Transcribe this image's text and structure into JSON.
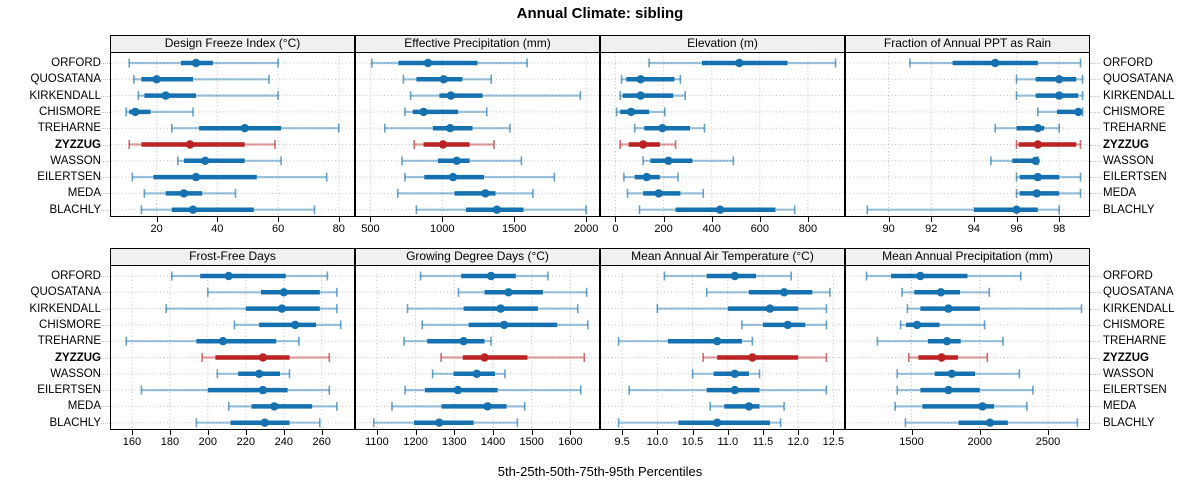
{
  "title": "Annual Climate: sibling",
  "caption": "5th-25th-50th-75th-95th Percentiles",
  "colors": {
    "series": "#1671b0",
    "series_light": "#7db3d8",
    "highlight": "#bb2222",
    "highlight_light": "#d58a86",
    "grid": "#c4c4c4",
    "strip_bg": "#f0f0f0",
    "border": "#000000"
  },
  "chart_data": {
    "type": "scatter",
    "subtype": "percentile-dot-whisker-trellis",
    "percentiles": [
      5,
      25,
      50,
      75,
      95
    ],
    "layout": {
      "rows": 2,
      "cols": 4,
      "grid": "dotted",
      "station_labels": "both-sides"
    },
    "categories": [
      "ORFORD",
      "QUOSATANA",
      "KIRKENDALL",
      "CHISMORE",
      "TREHARNE",
      "ZYZZUG",
      "WASSON",
      "EILERTSEN",
      "MEDA",
      "BLACHLY"
    ],
    "highlight_category": "ZYZZUG",
    "panels": [
      {
        "title": "Design Freeze Index (°C)",
        "xlim": [
          5,
          85
        ],
        "ticks": [
          20,
          40,
          60,
          80
        ],
        "tick_labels": [
          "20",
          "40",
          "60",
          "80"
        ],
        "values": [
          [
            11,
            28,
            33,
            38.5,
            60
          ],
          [
            12.5,
            15,
            20,
            32,
            57
          ],
          [
            14,
            16,
            23,
            33,
            60
          ],
          [
            10,
            11,
            13,
            18,
            32
          ],
          [
            25,
            34,
            49,
            61,
            80
          ],
          [
            11,
            15,
            31,
            49,
            59
          ],
          [
            27,
            29,
            36,
            49,
            61
          ],
          [
            12,
            19,
            33,
            53,
            76
          ],
          [
            16,
            23,
            29,
            35,
            46
          ],
          [
            15,
            25,
            32,
            52,
            72
          ]
        ]
      },
      {
        "title": "Effective Precipitation (mm)",
        "xlim": [
          400,
          2090
        ],
        "ticks": [
          500,
          1000,
          1500,
          2000
        ],
        "tick_labels": [
          "500",
          "1000",
          "1500",
          "2000"
        ],
        "values": [
          [
            510,
            695,
            900,
            1245,
            1590
          ],
          [
            730,
            820,
            1010,
            1140,
            1340
          ],
          [
            780,
            980,
            1060,
            1280,
            1960
          ],
          [
            740,
            795,
            870,
            1110,
            1310
          ],
          [
            600,
            935,
            1055,
            1210,
            1470
          ],
          [
            805,
            870,
            1005,
            1190,
            1360
          ],
          [
            720,
            970,
            1100,
            1190,
            1550
          ],
          [
            740,
            875,
            1075,
            1290,
            1780
          ],
          [
            690,
            1085,
            1300,
            1370,
            1630
          ],
          [
            820,
            1165,
            1380,
            1565,
            2000
          ]
        ]
      },
      {
        "title": "Elevation (m)",
        "xlim": [
          -60,
          950
        ],
        "ticks": [
          0,
          200,
          400,
          600,
          800
        ],
        "tick_labels": [
          "0",
          "200",
          "400",
          "600",
          "800"
        ],
        "values": [
          [
            140,
            360,
            515,
            715,
            915
          ],
          [
            25,
            45,
            105,
            245,
            270
          ],
          [
            20,
            30,
            105,
            240,
            290
          ],
          [
            5,
            20,
            65,
            140,
            205
          ],
          [
            80,
            120,
            195,
            310,
            370
          ],
          [
            20,
            55,
            115,
            185,
            250
          ],
          [
            115,
            145,
            220,
            320,
            490
          ],
          [
            35,
            80,
            130,
            185,
            260
          ],
          [
            50,
            115,
            180,
            270,
            365
          ],
          [
            100,
            250,
            435,
            665,
            745
          ]
        ]
      },
      {
        "title": "Fraction of Annual PPT as Rain",
        "xlim": [
          88,
          99.4
        ],
        "ticks": [
          90,
          92,
          94,
          96,
          98
        ],
        "tick_labels": [
          "90",
          "92",
          "94",
          "96",
          "98"
        ],
        "values": [
          [
            91,
            93,
            95,
            97,
            99
          ],
          [
            96,
            96.9,
            98,
            98.8,
            99.1
          ],
          [
            96,
            96.9,
            98,
            98.9,
            99.1
          ],
          [
            97,
            97.9,
            98.9,
            99,
            99.1
          ],
          [
            95,
            96,
            97,
            97.3,
            98
          ],
          [
            96,
            96.1,
            97,
            98.8,
            99
          ],
          [
            94.8,
            95.8,
            96.9,
            96.95,
            97
          ],
          [
            96,
            96.15,
            97,
            98,
            99
          ],
          [
            96,
            96.15,
            96.95,
            98,
            99
          ],
          [
            89,
            94,
            96,
            97,
            98
          ]
        ]
      },
      {
        "title": "Frost-Free Days",
        "xlim": [
          149,
          277
        ],
        "ticks": [
          160,
          180,
          200,
          220,
          240,
          260
        ],
        "tick_labels": [
          "160",
          "180",
          "200",
          "220",
          "240",
          "260"
        ],
        "values": [
          [
            181,
            196,
            211,
            241,
            263
          ],
          [
            200,
            228,
            240,
            259,
            268
          ],
          [
            178,
            220,
            239,
            259,
            268
          ],
          [
            214,
            227,
            246,
            257,
            270
          ],
          [
            157,
            194,
            208,
            236,
            248
          ],
          [
            197,
            204,
            229,
            243,
            264
          ],
          [
            205,
            216,
            227,
            238,
            243
          ],
          [
            165,
            200,
            229,
            242,
            264
          ],
          [
            211,
            223,
            235,
            255,
            268
          ],
          [
            194,
            212,
            230,
            243,
            259
          ]
        ]
      },
      {
        "title": "Growing Degree Days (°C)",
        "xlim": [
          1046,
          1674
        ],
        "ticks": [
          1100,
          1200,
          1300,
          1400,
          1500,
          1600
        ],
        "tick_labels": [
          "1100",
          "1200",
          "1300",
          "1400",
          "1500",
          "1600"
        ],
        "values": [
          [
            1213,
            1318,
            1395,
            1459,
            1542
          ],
          [
            1311,
            1378,
            1440,
            1529,
            1642
          ],
          [
            1179,
            1324,
            1420,
            1516,
            1619
          ],
          [
            1217,
            1337,
            1429,
            1566,
            1645
          ],
          [
            1170,
            1230,
            1324,
            1378,
            1395
          ],
          [
            1266,
            1322,
            1378,
            1489,
            1636
          ],
          [
            1244,
            1298,
            1358,
            1405,
            1431
          ],
          [
            1173,
            1224,
            1309,
            1412,
            1627
          ],
          [
            1139,
            1267,
            1386,
            1435,
            1482
          ],
          [
            1092,
            1196,
            1261,
            1350,
            1463
          ]
        ]
      },
      {
        "title": "Mean Annual Air Temperature (°C)",
        "xlim": [
          9.2,
          12.65
        ],
        "ticks": [
          9.5,
          10.0,
          10.5,
          11.0,
          11.5,
          12.0,
          12.5
        ],
        "tick_labels": [
          "9.5",
          "10.0",
          "10.5",
          "11.0",
          "11.5",
          "12.0",
          "12.5"
        ],
        "values": [
          [
            10.1,
            10.7,
            11.1,
            11.4,
            11.9
          ],
          [
            10.7,
            11.3,
            11.8,
            12.2,
            12.45
          ],
          [
            10.0,
            11.0,
            11.6,
            12.0,
            12.4
          ],
          [
            11.2,
            11.5,
            11.85,
            12.1,
            12.4
          ],
          [
            9.45,
            10.15,
            10.85,
            11.2,
            11.35
          ],
          [
            10.65,
            10.85,
            11.35,
            12.0,
            12.4
          ],
          [
            10.5,
            10.8,
            11.1,
            11.3,
            11.45
          ],
          [
            9.6,
            10.7,
            11.1,
            11.45,
            12.4
          ],
          [
            10.75,
            10.95,
            11.3,
            11.45,
            11.8
          ],
          [
            9.45,
            10.3,
            10.85,
            11.6,
            11.75
          ]
        ]
      },
      {
        "title": "Mean Annual Precipitation (mm)",
        "xlim": [
          1020,
          2800
        ],
        "ticks": [
          1500,
          2000,
          2500
        ],
        "tick_labels": [
          "1500",
          "2000",
          "2500"
        ],
        "values": [
          [
            1170,
            1350,
            1565,
            1910,
            2300
          ],
          [
            1430,
            1520,
            1715,
            1855,
            2070
          ],
          [
            1470,
            1565,
            1770,
            2000,
            2745
          ],
          [
            1420,
            1460,
            1540,
            1705,
            2035
          ],
          [
            1250,
            1620,
            1760,
            1860,
            2170
          ],
          [
            1480,
            1550,
            1720,
            1840,
            2055
          ],
          [
            1395,
            1670,
            1795,
            1965,
            2290
          ],
          [
            1395,
            1565,
            1770,
            2000,
            2390
          ],
          [
            1380,
            1580,
            2020,
            2105,
            2345
          ],
          [
            1455,
            1845,
            2075,
            2205,
            2715
          ]
        ]
      }
    ]
  }
}
